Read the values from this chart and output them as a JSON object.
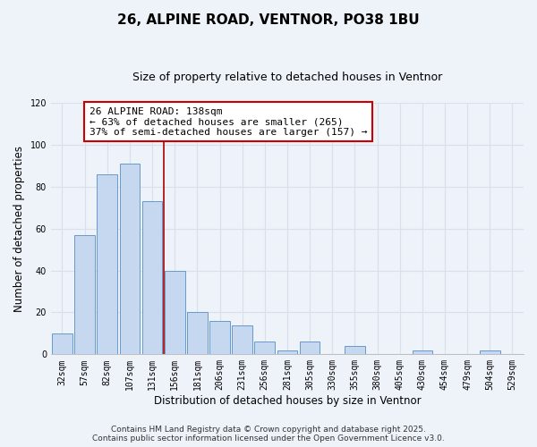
{
  "title": "26, ALPINE ROAD, VENTNOR, PO38 1BU",
  "subtitle": "Size of property relative to detached houses in Ventnor",
  "xlabel": "Distribution of detached houses by size in Ventnor",
  "ylabel": "Number of detached properties",
  "categories": [
    "32sqm",
    "57sqm",
    "82sqm",
    "107sqm",
    "131sqm",
    "156sqm",
    "181sqm",
    "206sqm",
    "231sqm",
    "256sqm",
    "281sqm",
    "305sqm",
    "330sqm",
    "355sqm",
    "380sqm",
    "405sqm",
    "430sqm",
    "454sqm",
    "479sqm",
    "504sqm",
    "529sqm"
  ],
  "values": [
    10,
    57,
    86,
    91,
    73,
    40,
    20,
    16,
    14,
    6,
    2,
    6,
    0,
    4,
    0,
    0,
    2,
    0,
    0,
    2,
    0
  ],
  "bar_color": "#c5d8f0",
  "bar_edge_color": "#6699cc",
  "vline_x_index": 4.5,
  "vline_color": "#aa0000",
  "annotation_text": "26 ALPINE ROAD: 138sqm\n← 63% of detached houses are smaller (265)\n37% of semi-detached houses are larger (157) →",
  "annotation_box_color": "#ffffff",
  "annotation_box_edge": "#cc0000",
  "ylim": [
    0,
    120
  ],
  "yticks": [
    0,
    20,
    40,
    60,
    80,
    100,
    120
  ],
  "footer_line1": "Contains HM Land Registry data © Crown copyright and database right 2025.",
  "footer_line2": "Contains public sector information licensed under the Open Government Licence v3.0.",
  "bg_color": "#eef2f9",
  "grid_color": "#d8e0ed",
  "title_fontsize": 11,
  "subtitle_fontsize": 9,
  "axis_label_fontsize": 8.5,
  "tick_fontsize": 7,
  "annotation_fontsize": 8,
  "footer_fontsize": 6.5
}
